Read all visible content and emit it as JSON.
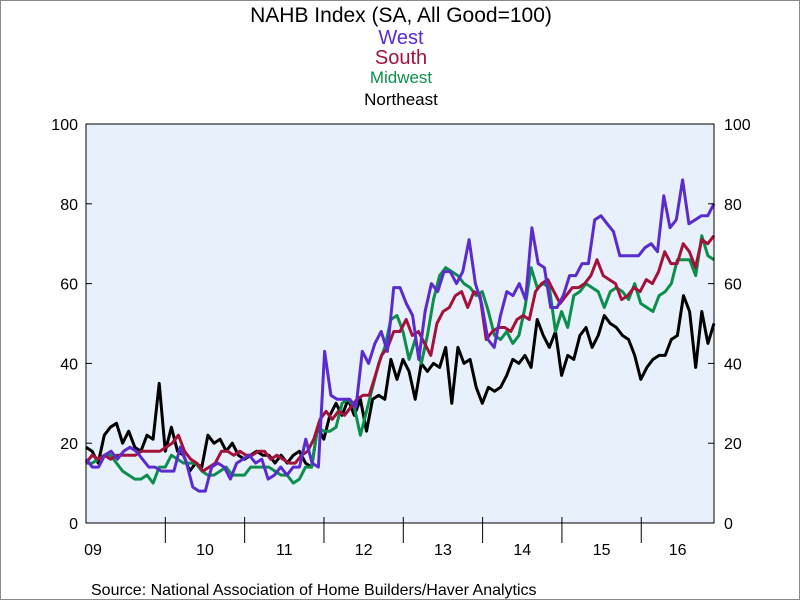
{
  "chart_data": {
    "type": "line",
    "title": "NAHB Index  (SA, All Good=100)",
    "xlabel": "",
    "ylabel": "",
    "ylim": [
      0,
      100
    ],
    "yticks": [
      0,
      20,
      40,
      60,
      80,
      100
    ],
    "xlim": [
      2009.0,
      2016.917
    ],
    "year_labels": [
      "09",
      "10",
      "11",
      "12",
      "13",
      "14",
      "15",
      "16"
    ],
    "source": "Source:  National Association of Home Builders/Haver Analytics",
    "grid": false,
    "background": "#e8f1fb",
    "legend_placement": "top-center",
    "series": [
      {
        "name": "West",
        "color": "#5b2bd0",
        "values": [
          16,
          14,
          14,
          17,
          18,
          16,
          18,
          19,
          18,
          16,
          14,
          14,
          13,
          13,
          13,
          19,
          15,
          9,
          8,
          8,
          14,
          15,
          14,
          11,
          15,
          16,
          17,
          15,
          16,
          11,
          12,
          14,
          12,
          14,
          14,
          21,
          15,
          14,
          43,
          32,
          31,
          31,
          31,
          29,
          43,
          40,
          45,
          48,
          43,
          59,
          59,
          55,
          52,
          41,
          53,
          60,
          58,
          63,
          63,
          60,
          63,
          71,
          60,
          55,
          46,
          44,
          52,
          58,
          57,
          60,
          56,
          74,
          65,
          64,
          54,
          54,
          57,
          62,
          62,
          65,
          65,
          76,
          77,
          75,
          73,
          67,
          67,
          67,
          67,
          69,
          70,
          68,
          82,
          74,
          76,
          86,
          75,
          76,
          77,
          77,
          80
        ]
      },
      {
        "name": "South",
        "color": "#a3123a",
        "values": [
          15,
          17,
          16,
          17,
          16,
          17,
          17,
          17,
          17,
          18,
          18,
          18,
          18,
          19,
          20,
          22,
          18,
          16,
          15,
          13,
          14,
          15,
          18,
          18,
          17,
          18,
          17,
          17,
          18,
          18,
          16,
          17,
          16,
          15,
          15,
          17,
          18,
          21,
          26,
          28,
          26,
          28,
          27,
          29,
          31,
          32,
          32,
          37,
          42,
          44,
          48,
          48,
          51,
          47,
          48,
          45,
          42,
          50,
          53,
          54,
          57,
          58,
          54,
          58,
          57,
          46,
          48,
          49,
          49,
          48,
          51,
          52,
          51,
          58,
          60,
          61,
          58,
          55,
          57,
          59,
          59,
          60,
          62,
          66,
          62,
          61,
          60,
          56,
          57,
          59,
          58,
          61,
          60,
          63,
          68,
          65,
          65,
          70,
          68,
          64,
          71,
          70,
          72
        ]
      },
      {
        "name": "Midwest",
        "color": "#0c8f4c",
        "values": [
          15,
          15,
          16,
          17,
          17,
          15,
          13,
          12,
          11,
          11,
          12,
          10,
          14,
          14,
          17,
          16,
          15,
          15,
          15,
          13,
          12,
          12,
          13,
          14,
          12,
          12,
          12,
          14,
          14,
          14,
          14,
          13,
          12,
          12,
          10,
          11,
          14,
          14,
          24,
          23,
          23,
          24,
          30,
          31,
          29,
          22,
          28,
          34,
          40,
          44,
          51,
          52,
          48,
          41,
          46,
          40,
          47,
          56,
          62,
          64,
          63,
          62,
          60,
          59,
          57,
          58,
          53,
          47,
          46,
          48,
          45,
          47,
          54,
          64,
          59,
          60,
          59,
          48,
          53,
          49,
          57,
          58,
          60,
          59,
          58,
          54,
          58,
          59,
          58,
          56,
          60,
          55,
          54,
          53,
          57,
          58,
          60,
          66,
          66,
          66,
          62,
          72,
          67,
          66
        ]
      },
      {
        "name": "Northeast",
        "color": "#000000",
        "values": [
          19,
          18,
          15,
          22,
          24,
          25,
          20,
          23,
          19,
          18,
          22,
          21,
          35,
          18,
          24,
          18,
          17,
          13,
          15,
          14,
          22,
          20,
          21,
          18,
          20,
          17,
          16,
          17,
          18,
          17,
          17,
          15,
          17,
          15,
          17,
          18,
          15,
          14,
          24,
          21,
          27,
          30,
          27,
          31,
          27,
          31,
          23,
          31,
          32,
          31,
          41,
          36,
          41,
          38,
          31,
          40,
          38,
          40,
          39,
          44,
          30,
          44,
          40,
          41,
          34,
          30,
          34,
          33,
          34,
          37,
          41,
          40,
          42,
          39,
          51,
          47,
          44,
          48,
          37,
          42,
          41,
          47,
          49,
          44,
          47,
          52,
          50,
          49,
          47,
          46,
          42,
          36,
          39,
          41,
          42,
          42,
          46,
          47,
          57,
          53,
          39,
          53,
          45,
          50
        ]
      }
    ]
  }
}
